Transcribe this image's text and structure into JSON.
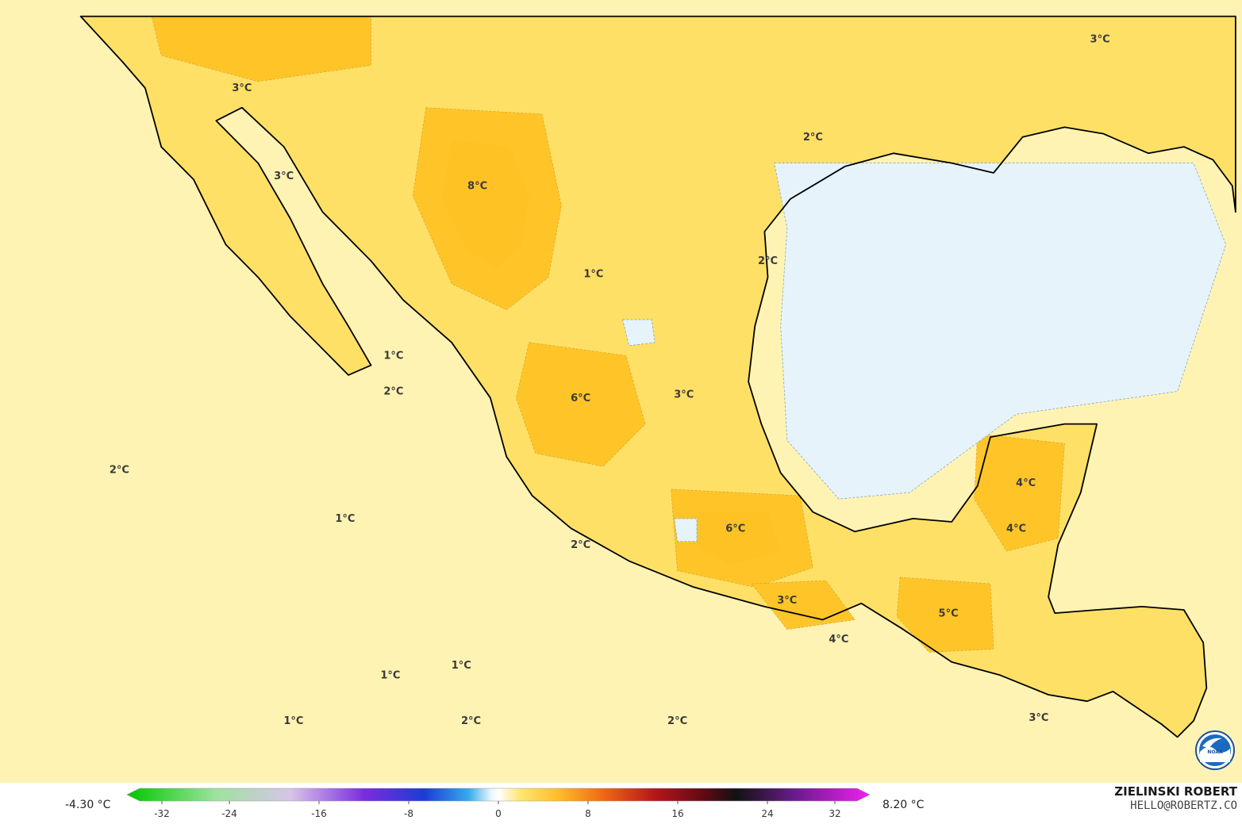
{
  "map": {
    "title": "",
    "temperature_labels": [
      {
        "text": "8°C",
        "lon": -106.2,
        "lat": 28.7
      },
      {
        "text": "6°C",
        "lon": -103.0,
        "lat": 22.2
      },
      {
        "text": "6°C",
        "lon": -98.2,
        "lat": 18.2
      },
      {
        "text": "5°C",
        "lon": -91.6,
        "lat": 15.6
      },
      {
        "text": "4°C",
        "lon": -89.2,
        "lat": 19.6
      },
      {
        "text": "4°C",
        "lon": -89.5,
        "lat": 18.2
      },
      {
        "text": "4°C",
        "lon": -95.0,
        "lat": 14.8
      },
      {
        "text": "3°C",
        "lon": -113.5,
        "lat": 31.7
      },
      {
        "text": "3°C",
        "lon": -112.2,
        "lat": 29.0
      },
      {
        "text": "3°C",
        "lon": -86.9,
        "lat": 33.2
      },
      {
        "text": "3°C",
        "lon": -99.8,
        "lat": 22.3
      },
      {
        "text": "3°C",
        "lon": -96.6,
        "lat": 16.0
      },
      {
        "text": "3°C",
        "lon": -88.8,
        "lat": 12.4
      },
      {
        "text": "2°C",
        "lon": -95.8,
        "lat": 30.2
      },
      {
        "text": "2°C",
        "lon": -97.2,
        "lat": 26.4
      },
      {
        "text": "2°C",
        "lon": -108.8,
        "lat": 22.4
      },
      {
        "text": "2°C",
        "lon": -117.3,
        "lat": 20.0
      },
      {
        "text": "2°C",
        "lon": -103.0,
        "lat": 17.7
      },
      {
        "text": "2°C",
        "lon": -106.4,
        "lat": 12.3
      },
      {
        "text": "2°C",
        "lon": -100.0,
        "lat": 12.3
      },
      {
        "text": "1°C",
        "lon": -102.6,
        "lat": 26.0
      },
      {
        "text": "1°C",
        "lon": -108.8,
        "lat": 23.5
      },
      {
        "text": "1°C",
        "lon": -110.3,
        "lat": 18.5
      },
      {
        "text": "1°C",
        "lon": -108.9,
        "lat": 13.7
      },
      {
        "text": "1°C",
        "lon": -106.7,
        "lat": 14.0
      },
      {
        "text": "1°C",
        "lon": -111.9,
        "lat": 12.3
      }
    ],
    "land_outline": [
      [
        -118.5,
        34.0
      ],
      [
        -117.2,
        32.6
      ],
      [
        -116.5,
        31.8
      ],
      [
        -116.0,
        30.0
      ],
      [
        -115.0,
        29.0
      ],
      [
        -114.5,
        28.0
      ],
      [
        -114.0,
        27.0
      ],
      [
        -113.0,
        26.0
      ],
      [
        -112.0,
        24.8
      ],
      [
        -110.2,
        23.0
      ],
      [
        -109.5,
        23.3
      ],
      [
        -110.2,
        24.5
      ],
      [
        -111.0,
        25.8
      ],
      [
        -112.0,
        27.8
      ],
      [
        -113.0,
        29.5
      ],
      [
        -114.3,
        30.8
      ],
      [
        -113.5,
        31.2
      ],
      [
        -112.2,
        30.0
      ],
      [
        -111.0,
        28.0
      ],
      [
        -109.5,
        26.5
      ],
      [
        -108.5,
        25.3
      ],
      [
        -107.0,
        24.0
      ],
      [
        -105.8,
        22.3
      ],
      [
        -105.3,
        20.5
      ],
      [
        -104.5,
        19.3
      ],
      [
        -103.3,
        18.3
      ],
      [
        -101.5,
        17.3
      ],
      [
        -99.5,
        16.5
      ],
      [
        -97.3,
        15.9
      ],
      [
        -95.5,
        15.5
      ],
      [
        -94.3,
        16.0
      ],
      [
        -93.0,
        15.2
      ],
      [
        -91.5,
        14.2
      ],
      [
        -90.0,
        13.8
      ],
      [
        -88.5,
        13.2
      ],
      [
        -87.3,
        13.0
      ],
      [
        -86.5,
        13.3
      ],
      [
        -85.0,
        12.3
      ],
      [
        -84.5,
        11.9
      ],
      [
        -84.0,
        12.4
      ],
      [
        -83.6,
        13.4
      ],
      [
        -83.7,
        14.8
      ],
      [
        -84.3,
        15.8
      ],
      [
        -85.6,
        15.9
      ],
      [
        -87.0,
        15.8
      ],
      [
        -88.3,
        15.7
      ],
      [
        -88.5,
        16.2
      ],
      [
        -88.2,
        17.8
      ],
      [
        -87.5,
        19.4
      ],
      [
        -87.0,
        21.5
      ],
      [
        -88.0,
        21.5
      ],
      [
        -90.3,
        21.1
      ],
      [
        -90.7,
        19.6
      ],
      [
        -91.5,
        18.5
      ],
      [
        -92.7,
        18.6
      ],
      [
        -94.5,
        18.2
      ],
      [
        -95.8,
        18.8
      ],
      [
        -96.8,
        20.0
      ],
      [
        -97.4,
        21.5
      ],
      [
        -97.8,
        22.8
      ],
      [
        -97.6,
        24.5
      ],
      [
        -97.2,
        26.0
      ],
      [
        -97.3,
        27.4
      ],
      [
        -96.5,
        28.4
      ],
      [
        -94.8,
        29.4
      ],
      [
        -93.3,
        29.8
      ],
      [
        -91.5,
        29.5
      ],
      [
        -90.2,
        29.2
      ],
      [
        -89.3,
        30.3
      ],
      [
        -88.0,
        30.6
      ],
      [
        -86.8,
        30.4
      ],
      [
        -85.4,
        29.8
      ],
      [
        -84.3,
        30.0
      ],
      [
        -83.4,
        29.6
      ],
      [
        -82.8,
        28.8
      ],
      [
        -82.7,
        28.0
      ],
      [
        -82.7,
        34.0
      ],
      [
        -118.5,
        34.0
      ]
    ],
    "warm_zones": [
      {
        "level": "deep",
        "points": [
          [
            -107.0,
            30.2
          ],
          [
            -105.2,
            30.0
          ],
          [
            -104.6,
            28.5
          ],
          [
            -104.8,
            27.0
          ],
          [
            -105.6,
            26.3
          ],
          [
            -106.5,
            26.8
          ],
          [
            -107.3,
            28.4
          ]
        ]
      },
      {
        "level": "warm",
        "points": [
          [
            -107.8,
            31.2
          ],
          [
            -104.2,
            31.0
          ],
          [
            -103.6,
            28.2
          ],
          [
            -104.0,
            26.0
          ],
          [
            -105.3,
            25.0
          ],
          [
            -107.0,
            25.8
          ],
          [
            -108.2,
            28.5
          ]
        ]
      },
      {
        "level": "warm",
        "points": [
          [
            -104.6,
            24.0
          ],
          [
            -101.6,
            23.6
          ],
          [
            -101.0,
            21.5
          ],
          [
            -102.3,
            20.2
          ],
          [
            -104.4,
            20.6
          ],
          [
            -105.0,
            22.3
          ]
        ]
      },
      {
        "level": "deep",
        "points": [
          [
            -99.3,
            18.8
          ],
          [
            -97.2,
            18.8
          ],
          [
            -96.8,
            17.6
          ],
          [
            -98.4,
            17.2
          ],
          [
            -99.5,
            17.8
          ]
        ]
      },
      {
        "level": "warm",
        "points": [
          [
            -100.2,
            19.5
          ],
          [
            -96.2,
            19.3
          ],
          [
            -95.8,
            17.1
          ],
          [
            -97.6,
            16.5
          ],
          [
            -100.0,
            17.0
          ]
        ]
      },
      {
        "level": "warm",
        "points": [
          [
            -97.7,
            16.6
          ],
          [
            -95.4,
            16.7
          ],
          [
            -94.5,
            15.5
          ],
          [
            -96.6,
            15.2
          ]
        ]
      },
      {
        "level": "warm",
        "points": [
          [
            -93.1,
            16.8
          ],
          [
            -90.3,
            16.6
          ],
          [
            -90.2,
            14.6
          ],
          [
            -92.2,
            14.5
          ],
          [
            -93.2,
            15.6
          ]
        ]
      },
      {
        "level": "warm",
        "points": [
          [
            -90.7,
            21.2
          ],
          [
            -88.0,
            20.9
          ],
          [
            -88.2,
            18.0
          ],
          [
            -89.8,
            17.6
          ],
          [
            -90.8,
            19.2
          ]
        ]
      },
      {
        "level": "warm",
        "points": [
          [
            -116.3,
            34.0
          ],
          [
            -109.5,
            34.0
          ],
          [
            -109.5,
            32.5
          ],
          [
            -113.0,
            32.0
          ],
          [
            -116.0,
            32.8
          ]
        ]
      }
    ],
    "cool_zones": [
      {
        "points": [
          [
            -97.0,
            29.5
          ],
          [
            -84.0,
            29.5
          ],
          [
            -83.0,
            27.0
          ],
          [
            -84.5,
            22.5
          ],
          [
            -89.5,
            21.8
          ],
          [
            -92.8,
            19.4
          ],
          [
            -95.0,
            19.2
          ],
          [
            -96.6,
            21.0
          ],
          [
            -96.8,
            24.5
          ],
          [
            -96.6,
            27.5
          ]
        ]
      },
      {
        "points": [
          [
            -101.7,
            24.7
          ],
          [
            -100.8,
            24.7
          ],
          [
            -100.7,
            24.0
          ],
          [
            -101.5,
            23.9
          ]
        ]
      },
      {
        "points": [
          [
            -100.1,
            18.6
          ],
          [
            -99.4,
            18.6
          ],
          [
            -99.4,
            17.9
          ],
          [
            -100.0,
            17.9
          ]
        ]
      }
    ],
    "colorbar": {
      "min_label": "-4.30 °C",
      "max_label": "8.20 °C",
      "ticks": [
        "-32",
        "-24",
        "-16",
        "-8",
        "0",
        "8",
        "16",
        "24",
        "32"
      ],
      "range": [
        -32,
        32
      ]
    },
    "credit": {
      "name": "ZIELINSKI ROBERT",
      "email": "HELLO@ROBERTZ.CO"
    },
    "logo": "noaa-logo",
    "colors": {
      "background_warm": "#fff3b3",
      "light_warm": "#ffe066",
      "warm": "#ffc425",
      "deep_warm": "#f59a2a",
      "cool": "#e6f3fb",
      "border": "#000000"
    }
  }
}
